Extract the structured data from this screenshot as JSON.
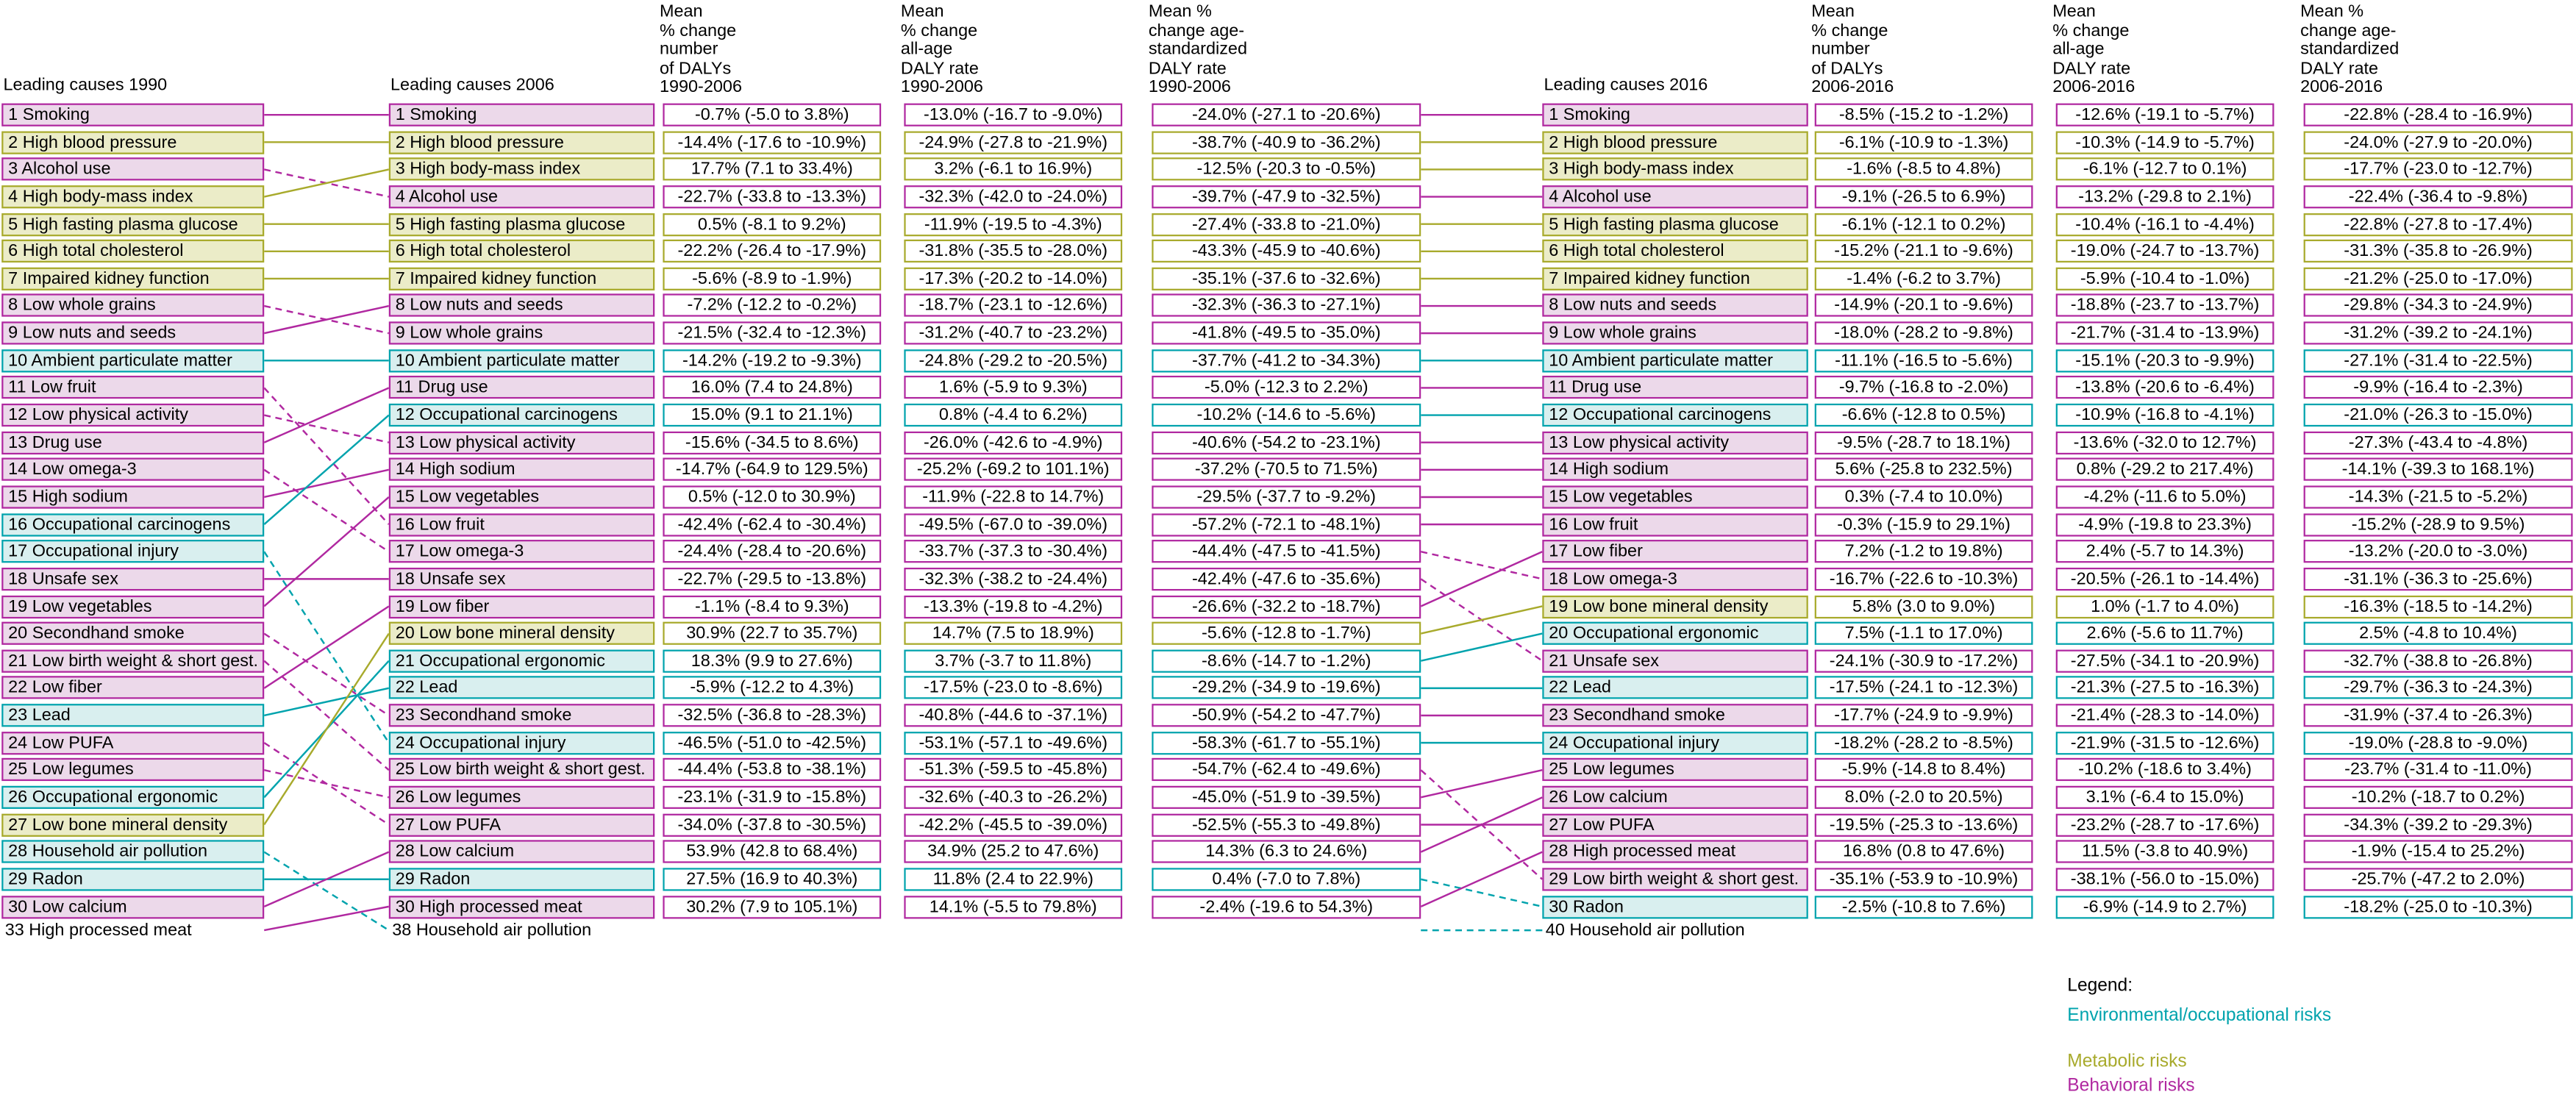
{
  "headers": {
    "h1990": "Leading causes 1990",
    "h2006": "Leading causes 2006",
    "h2016": "Leading causes 2016",
    "v1a": "Mean\n% change\nnumber\nof DALYs\n1990-2006",
    "v1b": "Mean\n% change\nall-age\nDALY rate\n1990-2006",
    "v1c": "Mean %\nchange age-\nstandardized\nDALY rate\n1990-2006",
    "v2a": "Mean\n% change\nnumber\nof DALYs\n2006-2016",
    "v2b": "Mean\n% change\nall-age\nDALY rate\n2006-2016",
    "v2c": "Mean %\nchange age-\nstandardized\nDALY rate\n2006-2016"
  },
  "categories": {
    "environmental": {
      "label": "Environmental/occupational risks",
      "border": "#00a3ad",
      "fill": "#d9efef"
    },
    "metabolic": {
      "label": "Metabolic risks",
      "border": "#a8aa2c",
      "fill": "#ebecc8"
    },
    "behavioral": {
      "label": "Behavioral risks",
      "border": "#b028a0",
      "fill": "#ecd9ea"
    }
  },
  "legend": {
    "title": "Legend:",
    "items": [
      "environmental",
      "metabolic",
      "behavioral"
    ]
  },
  "chart_data": {
    "type": "table",
    "ranking_1990": [
      {
        "rank": 1,
        "name": "Smoking",
        "cat": "behavioral"
      },
      {
        "rank": 2,
        "name": "High blood pressure",
        "cat": "metabolic"
      },
      {
        "rank": 3,
        "name": "Alcohol use",
        "cat": "behavioral"
      },
      {
        "rank": 4,
        "name": "High body-mass index",
        "cat": "metabolic"
      },
      {
        "rank": 5,
        "name": "High fasting plasma glucose",
        "cat": "metabolic"
      },
      {
        "rank": 6,
        "name": "High total cholesterol",
        "cat": "metabolic"
      },
      {
        "rank": 7,
        "name": "Impaired kidney function",
        "cat": "metabolic"
      },
      {
        "rank": 8,
        "name": "Low whole grains",
        "cat": "behavioral"
      },
      {
        "rank": 9,
        "name": "Low nuts and seeds",
        "cat": "behavioral"
      },
      {
        "rank": 10,
        "name": "Ambient particulate matter",
        "cat": "environmental"
      },
      {
        "rank": 11,
        "name": "Low fruit",
        "cat": "behavioral"
      },
      {
        "rank": 12,
        "name": "Low physical activity",
        "cat": "behavioral"
      },
      {
        "rank": 13,
        "name": "Drug use",
        "cat": "behavioral"
      },
      {
        "rank": 14,
        "name": "Low omega-3",
        "cat": "behavioral"
      },
      {
        "rank": 15,
        "name": "High sodium",
        "cat": "behavioral"
      },
      {
        "rank": 16,
        "name": "Occupational carcinogens",
        "cat": "environmental"
      },
      {
        "rank": 17,
        "name": "Occupational injury",
        "cat": "environmental"
      },
      {
        "rank": 18,
        "name": "Unsafe sex",
        "cat": "behavioral"
      },
      {
        "rank": 19,
        "name": "Low vegetables",
        "cat": "behavioral"
      },
      {
        "rank": 20,
        "name": "Secondhand smoke",
        "cat": "behavioral"
      },
      {
        "rank": 21,
        "name": "Low birth weight & short gest.",
        "cat": "behavioral"
      },
      {
        "rank": 22,
        "name": "Low fiber",
        "cat": "behavioral"
      },
      {
        "rank": 23,
        "name": "Lead",
        "cat": "environmental"
      },
      {
        "rank": 24,
        "name": "Low PUFA",
        "cat": "behavioral"
      },
      {
        "rank": 25,
        "name": "Low legumes",
        "cat": "behavioral"
      },
      {
        "rank": 26,
        "name": "Occupational ergonomic",
        "cat": "environmental"
      },
      {
        "rank": 27,
        "name": "Low bone mineral density",
        "cat": "metabolic"
      },
      {
        "rank": 28,
        "name": "Household air pollution",
        "cat": "environmental"
      },
      {
        "rank": 29,
        "name": "Radon",
        "cat": "environmental"
      },
      {
        "rank": 30,
        "name": "Low calcium",
        "cat": "behavioral"
      }
    ],
    "unranked_1990": {
      "rank": 33,
      "name": "High processed meat",
      "cat": "behavioral"
    },
    "ranking_2006": [
      {
        "rank": 1,
        "name": "Smoking",
        "cat": "behavioral",
        "values": [
          "-0.7% (-5.0 to 3.8%)",
          "-13.0% (-16.7 to -9.0%)",
          "-24.0% (-27.1 to -20.6%)"
        ]
      },
      {
        "rank": 2,
        "name": "High blood pressure",
        "cat": "metabolic",
        "values": [
          "-14.4% (-17.6 to -10.9%)",
          "-24.9% (-27.8 to -21.9%)",
          "-38.7% (-40.9 to -36.2%)"
        ]
      },
      {
        "rank": 3,
        "name": "High body-mass index",
        "cat": "metabolic",
        "values": [
          "17.7% (7.1 to 33.4%)",
          "3.2% (-6.1 to 16.9%)",
          "-12.5% (-20.3 to -0.5%)"
        ]
      },
      {
        "rank": 4,
        "name": "Alcohol use",
        "cat": "behavioral",
        "values": [
          "-22.7% (-33.8 to -13.3%)",
          "-32.3% (-42.0 to -24.0%)",
          "-39.7% (-47.9 to -32.5%)"
        ]
      },
      {
        "rank": 5,
        "name": "High fasting plasma glucose",
        "cat": "metabolic",
        "values": [
          "0.5% (-8.1 to 9.2%)",
          "-11.9% (-19.5 to -4.3%)",
          "-27.4% (-33.8 to -21.0%)"
        ]
      },
      {
        "rank": 6,
        "name": "High total cholesterol",
        "cat": "metabolic",
        "values": [
          "-22.2% (-26.4 to -17.9%)",
          "-31.8% (-35.5 to -28.0%)",
          "-43.3% (-45.9 to -40.6%)"
        ]
      },
      {
        "rank": 7,
        "name": "Impaired kidney function",
        "cat": "metabolic",
        "values": [
          "-5.6% (-8.9 to -1.9%)",
          "-17.3% (-20.2 to -14.0%)",
          "-35.1% (-37.6 to -32.6%)"
        ]
      },
      {
        "rank": 8,
        "name": "Low nuts and seeds",
        "cat": "behavioral",
        "values": [
          "-7.2% (-12.2 to -0.2%)",
          "-18.7% (-23.1 to -12.6%)",
          "-32.3% (-36.3 to -27.1%)"
        ]
      },
      {
        "rank": 9,
        "name": "Low whole grains",
        "cat": "behavioral",
        "values": [
          "-21.5% (-32.4 to -12.3%)",
          "-31.2% (-40.7 to -23.2%)",
          "-41.8% (-49.5 to -35.0%)"
        ]
      },
      {
        "rank": 10,
        "name": "Ambient particulate matter",
        "cat": "environmental",
        "values": [
          "-14.2% (-19.2 to -9.3%)",
          "-24.8% (-29.2 to -20.5%)",
          "-37.7% (-41.2 to -34.3%)"
        ]
      },
      {
        "rank": 11,
        "name": "Drug use",
        "cat": "behavioral",
        "values": [
          "16.0% (7.4 to 24.8%)",
          "1.6% (-5.9 to 9.3%)",
          "-5.0% (-12.3 to 2.2%)"
        ]
      },
      {
        "rank": 12,
        "name": "Occupational carcinogens",
        "cat": "environmental",
        "values": [
          "15.0% (9.1 to 21.1%)",
          "0.8% (-4.4 to 6.2%)",
          "-10.2% (-14.6 to -5.6%)"
        ]
      },
      {
        "rank": 13,
        "name": "Low physical activity",
        "cat": "behavioral",
        "values": [
          "-15.6% (-34.5 to 8.6%)",
          "-26.0% (-42.6 to -4.9%)",
          "-40.6% (-54.2 to -23.1%)"
        ]
      },
      {
        "rank": 14,
        "name": "High sodium",
        "cat": "behavioral",
        "values": [
          "-14.7% (-64.9 to 129.5%)",
          "-25.2% (-69.2 to 101.1%)",
          "-37.2% (-70.5 to 71.5%)"
        ]
      },
      {
        "rank": 15,
        "name": "Low vegetables",
        "cat": "behavioral",
        "values": [
          "0.5% (-12.0 to 30.9%)",
          "-11.9% (-22.8 to 14.7%)",
          "-29.5% (-37.7 to -9.2%)"
        ]
      },
      {
        "rank": 16,
        "name": "Low fruit",
        "cat": "behavioral",
        "values": [
          "-42.4% (-62.4 to -30.4%)",
          "-49.5% (-67.0 to -39.0%)",
          "-57.2% (-72.1 to -48.1%)"
        ]
      },
      {
        "rank": 17,
        "name": "Low omega-3",
        "cat": "behavioral",
        "values": [
          "-24.4% (-28.4 to -20.6%)",
          "-33.7% (-37.3 to -30.4%)",
          "-44.4% (-47.5 to -41.5%)"
        ]
      },
      {
        "rank": 18,
        "name": "Unsafe sex",
        "cat": "behavioral",
        "values": [
          "-22.7% (-29.5 to -13.8%)",
          "-32.3% (-38.2 to -24.4%)",
          "-42.4% (-47.6 to -35.6%)"
        ]
      },
      {
        "rank": 19,
        "name": "Low fiber",
        "cat": "behavioral",
        "values": [
          "-1.1% (-8.4 to 9.3%)",
          "-13.3% (-19.8 to -4.2%)",
          "-26.6% (-32.2 to -18.7%)"
        ]
      },
      {
        "rank": 20,
        "name": "Low bone mineral density",
        "cat": "metabolic",
        "values": [
          "30.9% (22.7 to 35.7%)",
          "14.7% (7.5 to 18.9%)",
          "-5.6% (-12.8 to -1.7%)"
        ]
      },
      {
        "rank": 21,
        "name": "Occupational ergonomic",
        "cat": "environmental",
        "values": [
          "18.3% (9.9 to 27.6%)",
          "3.7% (-3.7 to 11.8%)",
          "-8.6% (-14.7 to -1.2%)"
        ]
      },
      {
        "rank": 22,
        "name": "Lead",
        "cat": "environmental",
        "values": [
          "-5.9% (-12.2 to 4.3%)",
          "-17.5% (-23.0 to -8.6%)",
          "-29.2% (-34.9 to -19.6%)"
        ]
      },
      {
        "rank": 23,
        "name": "Secondhand smoke",
        "cat": "behavioral",
        "values": [
          "-32.5% (-36.8 to -28.3%)",
          "-40.8% (-44.6 to -37.1%)",
          "-50.9% (-54.2 to -47.7%)"
        ]
      },
      {
        "rank": 24,
        "name": "Occupational injury",
        "cat": "environmental",
        "values": [
          "-46.5% (-51.0 to -42.5%)",
          "-53.1% (-57.1 to -49.6%)",
          "-58.3% (-61.7 to -55.1%)"
        ]
      },
      {
        "rank": 25,
        "name": "Low birth weight & short gest.",
        "cat": "behavioral",
        "values": [
          "-44.4% (-53.8 to -38.1%)",
          "-51.3% (-59.5 to -45.8%)",
          "-54.7% (-62.4 to -49.6%)"
        ]
      },
      {
        "rank": 26,
        "name": "Low legumes",
        "cat": "behavioral",
        "values": [
          "-23.1% (-31.9 to -15.8%)",
          "-32.6% (-40.3 to -26.2%)",
          "-45.0% (-51.9 to -39.5%)"
        ]
      },
      {
        "rank": 27,
        "name": "Low PUFA",
        "cat": "behavioral",
        "values": [
          "-34.0% (-37.8 to -30.5%)",
          "-42.2% (-45.5 to -39.0%)",
          "-52.5% (-55.3 to -49.8%)"
        ]
      },
      {
        "rank": 28,
        "name": "Low calcium",
        "cat": "behavioral",
        "values": [
          "53.9% (42.8 to 68.4%)",
          "34.9% (25.2 to 47.6%)",
          "14.3% (6.3 to 24.6%)"
        ]
      },
      {
        "rank": 29,
        "name": "Radon",
        "cat": "environmental",
        "values": [
          "27.5% (16.9 to 40.3%)",
          "11.8% (2.4 to 22.9%)",
          "0.4% (-7.0 to 7.8%)"
        ]
      },
      {
        "rank": 30,
        "name": "High processed meat",
        "cat": "behavioral",
        "values": [
          "30.2% (7.9 to 105.1%)",
          "14.1% (-5.5 to 79.8%)",
          "-2.4% (-19.6 to 54.3%)"
        ]
      }
    ],
    "unranked_2006": {
      "rank": 38,
      "name": "Household air pollution",
      "cat": "environmental"
    },
    "ranking_2016": [
      {
        "rank": 1,
        "name": "Smoking",
        "cat": "behavioral",
        "values": [
          "-8.5% (-15.2 to -1.2%)",
          "-12.6% (-19.1 to -5.7%)",
          "-22.8% (-28.4 to -16.9%)"
        ]
      },
      {
        "rank": 2,
        "name": "High blood pressure",
        "cat": "metabolic",
        "values": [
          "-6.1% (-10.9 to -1.3%)",
          "-10.3% (-14.9 to -5.7%)",
          "-24.0% (-27.9 to -20.0%)"
        ]
      },
      {
        "rank": 3,
        "name": "High body-mass index",
        "cat": "metabolic",
        "values": [
          "-1.6% (-8.5 to 4.8%)",
          "-6.1% (-12.7 to 0.1%)",
          "-17.7% (-23.0 to -12.7%)"
        ]
      },
      {
        "rank": 4,
        "name": "Alcohol use",
        "cat": "behavioral",
        "values": [
          "-9.1% (-26.5 to 6.9%)",
          "-13.2% (-29.8 to 2.1%)",
          "-22.4% (-36.4 to -9.8%)"
        ]
      },
      {
        "rank": 5,
        "name": "High fasting plasma glucose",
        "cat": "metabolic",
        "values": [
          "-6.1% (-12.1 to 0.2%)",
          "-10.4% (-16.1 to -4.4%)",
          "-22.8% (-27.8 to -17.4%)"
        ]
      },
      {
        "rank": 6,
        "name": "High total cholesterol",
        "cat": "metabolic",
        "values": [
          "-15.2% (-21.1 to -9.6%)",
          "-19.0% (-24.7 to -13.7%)",
          "-31.3% (-35.8 to -26.9%)"
        ]
      },
      {
        "rank": 7,
        "name": "Impaired kidney function",
        "cat": "metabolic",
        "values": [
          "-1.4% (-6.2 to 3.7%)",
          "-5.9% (-10.4 to -1.0%)",
          "-21.2% (-25.0 to -17.0%)"
        ]
      },
      {
        "rank": 8,
        "name": "Low nuts and seeds",
        "cat": "behavioral",
        "values": [
          "-14.9% (-20.1 to -9.6%)",
          "-18.8% (-23.7 to -13.7%)",
          "-29.8% (-34.3 to -24.9%)"
        ]
      },
      {
        "rank": 9,
        "name": "Low whole grains",
        "cat": "behavioral",
        "values": [
          "-18.0% (-28.2 to -9.8%)",
          "-21.7% (-31.4 to -13.9%)",
          "-31.2% (-39.2 to -24.1%)"
        ]
      },
      {
        "rank": 10,
        "name": "Ambient particulate matter",
        "cat": "environmental",
        "values": [
          "-11.1% (-16.5 to -5.6%)",
          "-15.1% (-20.3 to -9.9%)",
          "-27.1% (-31.4 to -22.5%)"
        ]
      },
      {
        "rank": 11,
        "name": "Drug use",
        "cat": "behavioral",
        "values": [
          "-9.7% (-16.8 to -2.0%)",
          "-13.8% (-20.6 to -6.4%)",
          "-9.9% (-16.4 to -2.3%)"
        ]
      },
      {
        "rank": 12,
        "name": "Occupational carcinogens",
        "cat": "environmental",
        "values": [
          "-6.6% (-12.8 to 0.5%)",
          "-10.9% (-16.8 to -4.1%)",
          "-21.0% (-26.3 to -15.0%)"
        ]
      },
      {
        "rank": 13,
        "name": "Low physical activity",
        "cat": "behavioral",
        "values": [
          "-9.5% (-28.7 to 18.1%)",
          "-13.6% (-32.0 to 12.7%)",
          "-27.3% (-43.4 to -4.8%)"
        ]
      },
      {
        "rank": 14,
        "name": "High sodium",
        "cat": "behavioral",
        "values": [
          "5.6% (-25.8 to 232.5%)",
          "0.8% (-29.2 to 217.4%)",
          "-14.1% (-39.3 to 168.1%)"
        ]
      },
      {
        "rank": 15,
        "name": "Low vegetables",
        "cat": "behavioral",
        "values": [
          "0.3% (-7.4 to 10.0%)",
          "-4.2% (-11.6 to 5.0%)",
          "-14.3% (-21.5 to -5.2%)"
        ]
      },
      {
        "rank": 16,
        "name": "Low fruit",
        "cat": "behavioral",
        "values": [
          "-0.3% (-15.9 to 29.1%)",
          "-4.9% (-19.8 to 23.3%)",
          "-15.2% (-28.9 to 9.5%)"
        ]
      },
      {
        "rank": 17,
        "name": "Low fiber",
        "cat": "behavioral",
        "values": [
          "7.2% (-1.2 to 19.8%)",
          "2.4% (-5.7 to 14.3%)",
          "-13.2% (-20.0 to -3.0%)"
        ]
      },
      {
        "rank": 18,
        "name": "Low omega-3",
        "cat": "behavioral",
        "values": [
          "-16.7% (-22.6 to -10.3%)",
          "-20.5% (-26.1 to -14.4%)",
          "-31.1% (-36.3 to -25.6%)"
        ]
      },
      {
        "rank": 19,
        "name": "Low bone mineral density",
        "cat": "metabolic",
        "values": [
          "5.8% (3.0 to 9.0%)",
          "1.0% (-1.7 to 4.0%)",
          "-16.3% (-18.5 to -14.2%)"
        ]
      },
      {
        "rank": 20,
        "name": "Occupational ergonomic",
        "cat": "environmental",
        "values": [
          "7.5% (-1.1 to 17.0%)",
          "2.6% (-5.6 to 11.7%)",
          "2.5% (-4.8 to 10.4%)"
        ]
      },
      {
        "rank": 21,
        "name": "Unsafe sex",
        "cat": "behavioral",
        "values": [
          "-24.1% (-30.9 to -17.2%)",
          "-27.5% (-34.1 to -20.9%)",
          "-32.7% (-38.8 to -26.8%)"
        ]
      },
      {
        "rank": 22,
        "name": "Lead",
        "cat": "environmental",
        "values": [
          "-17.5% (-24.1 to -12.3%)",
          "-21.3% (-27.5 to -16.3%)",
          "-29.7% (-36.3 to -24.3%)"
        ]
      },
      {
        "rank": 23,
        "name": "Secondhand smoke",
        "cat": "behavioral",
        "values": [
          "-17.7% (-24.9 to -9.9%)",
          "-21.4% (-28.3 to -14.0%)",
          "-31.9% (-37.4 to -26.3%)"
        ]
      },
      {
        "rank": 24,
        "name": "Occupational injury",
        "cat": "environmental",
        "values": [
          "-18.2% (-28.2 to -8.5%)",
          "-21.9% (-31.5 to -12.6%)",
          "-19.0% (-28.8 to -9.0%)"
        ]
      },
      {
        "rank": 25,
        "name": "Low legumes",
        "cat": "behavioral",
        "values": [
          "-5.9% (-14.8 to 8.4%)",
          "-10.2% (-18.6 to 3.4%)",
          "-23.7% (-31.4 to -11.0%)"
        ]
      },
      {
        "rank": 26,
        "name": "Low calcium",
        "cat": "behavioral",
        "values": [
          "8.0% (-2.0 to 20.5%)",
          "3.1% (-6.4 to 15.0%)",
          "-10.2% (-18.7 to 0.2%)"
        ]
      },
      {
        "rank": 27,
        "name": "Low PUFA",
        "cat": "behavioral",
        "values": [
          "-19.5% (-25.3 to -13.6%)",
          "-23.2% (-28.7 to -17.6%)",
          "-34.3% (-39.2 to -29.3%)"
        ]
      },
      {
        "rank": 28,
        "name": "High processed meat",
        "cat": "behavioral",
        "values": [
          "16.8% (0.8 to 47.6%)",
          "11.5% (-3.8 to 40.9%)",
          "-1.9% (-15.4 to 25.2%)"
        ]
      },
      {
        "rank": 29,
        "name": "Low birth weight & short gest.",
        "cat": "behavioral",
        "values": [
          "-35.1% (-53.9 to -10.9%)",
          "-38.1% (-56.0 to -15.0%)",
          "-25.7% (-47.2 to 2.0%)"
        ]
      },
      {
        "rank": 30,
        "name": "Radon",
        "cat": "environmental",
        "values": [
          "-2.5% (-10.8 to 7.6%)",
          "-6.9% (-14.9 to 2.7%)",
          "-18.2% (-25.0 to -10.3%)"
        ]
      }
    ],
    "unranked_2016": {
      "rank": 40,
      "name": "Household air pollution",
      "cat": "environmental"
    }
  }
}
